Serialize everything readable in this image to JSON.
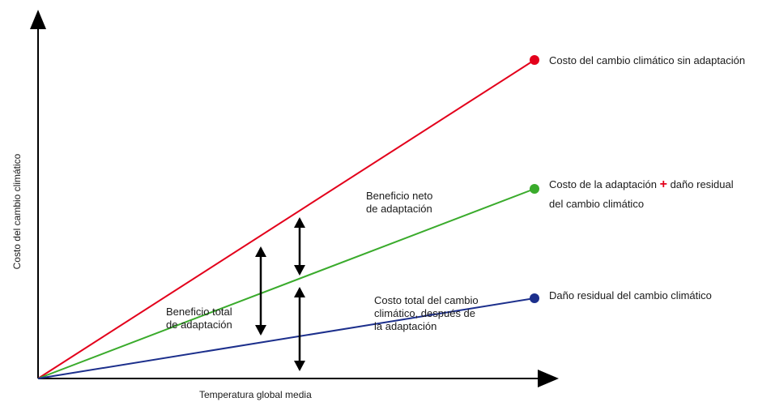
{
  "axes": {
    "x_label": "Temperatura global media",
    "y_label": "Costo del cambio climático"
  },
  "lines": {
    "red": {
      "label": "Costo del cambio climático sin adaptación",
      "color": "#e3001b"
    },
    "green": {
      "label_before_plus": "Costo de la adaptación",
      "plus": "+",
      "label_after_plus": "daño residual",
      "label_line2": "del cambio climático",
      "color": "#3aab2c"
    },
    "blue": {
      "label": "Daño residual del cambio climático",
      "color": "#1c2f8c"
    }
  },
  "annotations": {
    "net_benefit_line1": "Beneficio neto",
    "net_benefit_line2": "de adaptación",
    "total_benefit_line1": "Beneficio total",
    "total_benefit_line2": "de adaptación",
    "total_cost_line1": "Costo total del cambio",
    "total_cost_line2": "climático, después de",
    "total_cost_line3": "la adaptación"
  },
  "icons": {
    "axis_arrows": "triangle-arrowhead",
    "double_arrows": "double-headed-arrow"
  }
}
